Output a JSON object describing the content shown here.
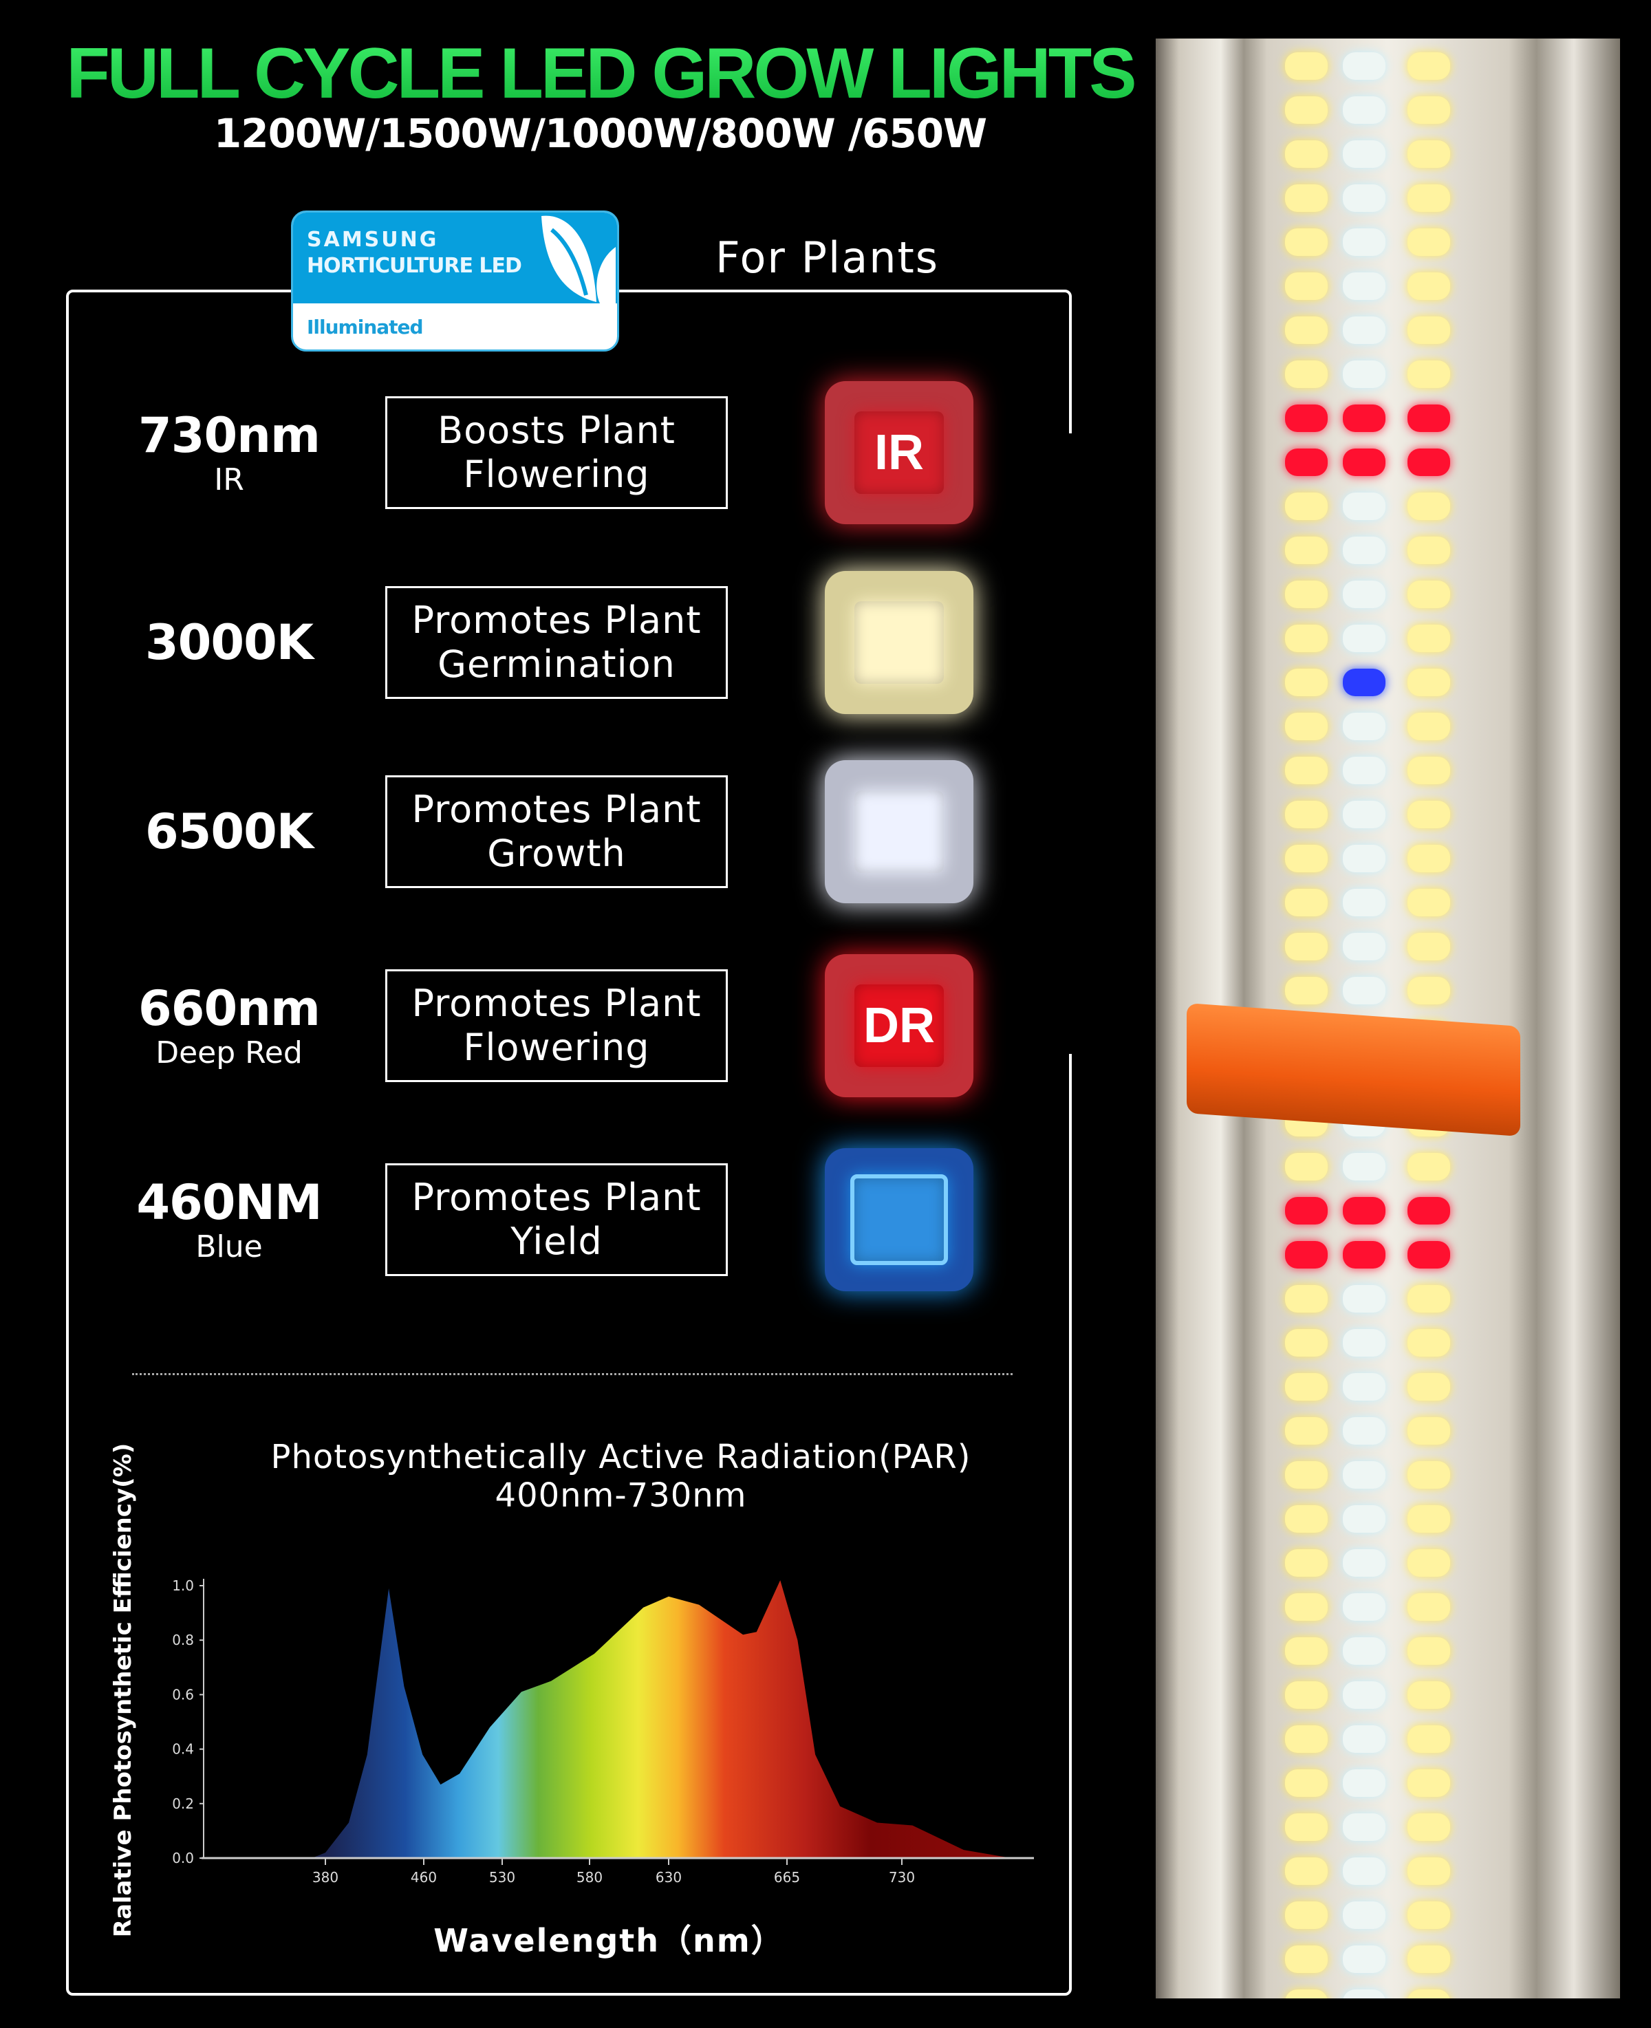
{
  "header": {
    "title": "FULL CYCLE LED GROW LIGHTS",
    "subtitle": "1200W/1500W/1000W/800W /650W",
    "title_color": "#1ed84c"
  },
  "badge": {
    "brand": "SAMSUNG",
    "line": "HORTICULTURE LED",
    "tag": "Illuminated",
    "color": "#079fdd"
  },
  "for_plants": "For Plants",
  "rows": [
    {
      "main": "730nm",
      "sub": "IR",
      "benefit": "Boosts Plant\nFlowering",
      "chip": "IR",
      "chip_color": "#d41f2a",
      "icon": "ir-led-chip-icon"
    },
    {
      "main": "3000K",
      "sub": "",
      "benefit": "Promotes Plant\nGermination",
      "chip": "",
      "chip_color": "#fff6c8",
      "icon": "warm-white-led-chip-icon"
    },
    {
      "main": "6500K",
      "sub": "",
      "benefit": "Promotes Plant\nGrowth",
      "chip": "",
      "chip_color": "#eef2ff",
      "icon": "cool-white-led-chip-icon"
    },
    {
      "main": "660nm",
      "sub": "Deep Red",
      "benefit": "Promotes Plant\nFlowering",
      "chip": "DR",
      "chip_color": "#e6121e",
      "icon": "deep-red-led-chip-icon"
    },
    {
      "main": "460NM",
      "sub": "Blue",
      "benefit": "Promotes Plant\nYield",
      "chip": "",
      "chip_color": "#1a8ee8",
      "icon": "blue-led-chip-icon"
    }
  ],
  "chart_data": {
    "type": "area",
    "title": "Photosynthetically Active Radiation(PAR)",
    "subtitle": "400nm-730nm",
    "xlabel": "Wavelength（nm）",
    "ylabel": "Ralative Photosynthetic Efficiency(%)",
    "x_ticks": [
      380,
      460,
      530,
      580,
      630,
      665,
      730
    ],
    "y_ticks": [
      "0.0",
      "0.2",
      "0.4",
      "0.6",
      "0.8",
      "1.0"
    ],
    "ylim": [
      0,
      1.0
    ],
    "grid": false,
    "fill": "visible-spectrum-gradient",
    "x": [
      369,
      380,
      399,
      414,
      431.5,
      444,
      459,
      475,
      492,
      519,
      541,
      558,
      583,
      614,
      630,
      639,
      652,
      656,
      663,
      671,
      681,
      695,
      716,
      736,
      765,
      792
    ],
    "y": [
      0,
      0.02,
      0.13,
      0.38,
      0.99,
      0.63,
      0.38,
      0.27,
      0.31,
      0.48,
      0.61,
      0.65,
      0.75,
      0.92,
      0.96,
      0.93,
      0.82,
      0.83,
      1.02,
      0.8,
      0.38,
      0.19,
      0.13,
      0.12,
      0.03,
      0
    ]
  }
}
